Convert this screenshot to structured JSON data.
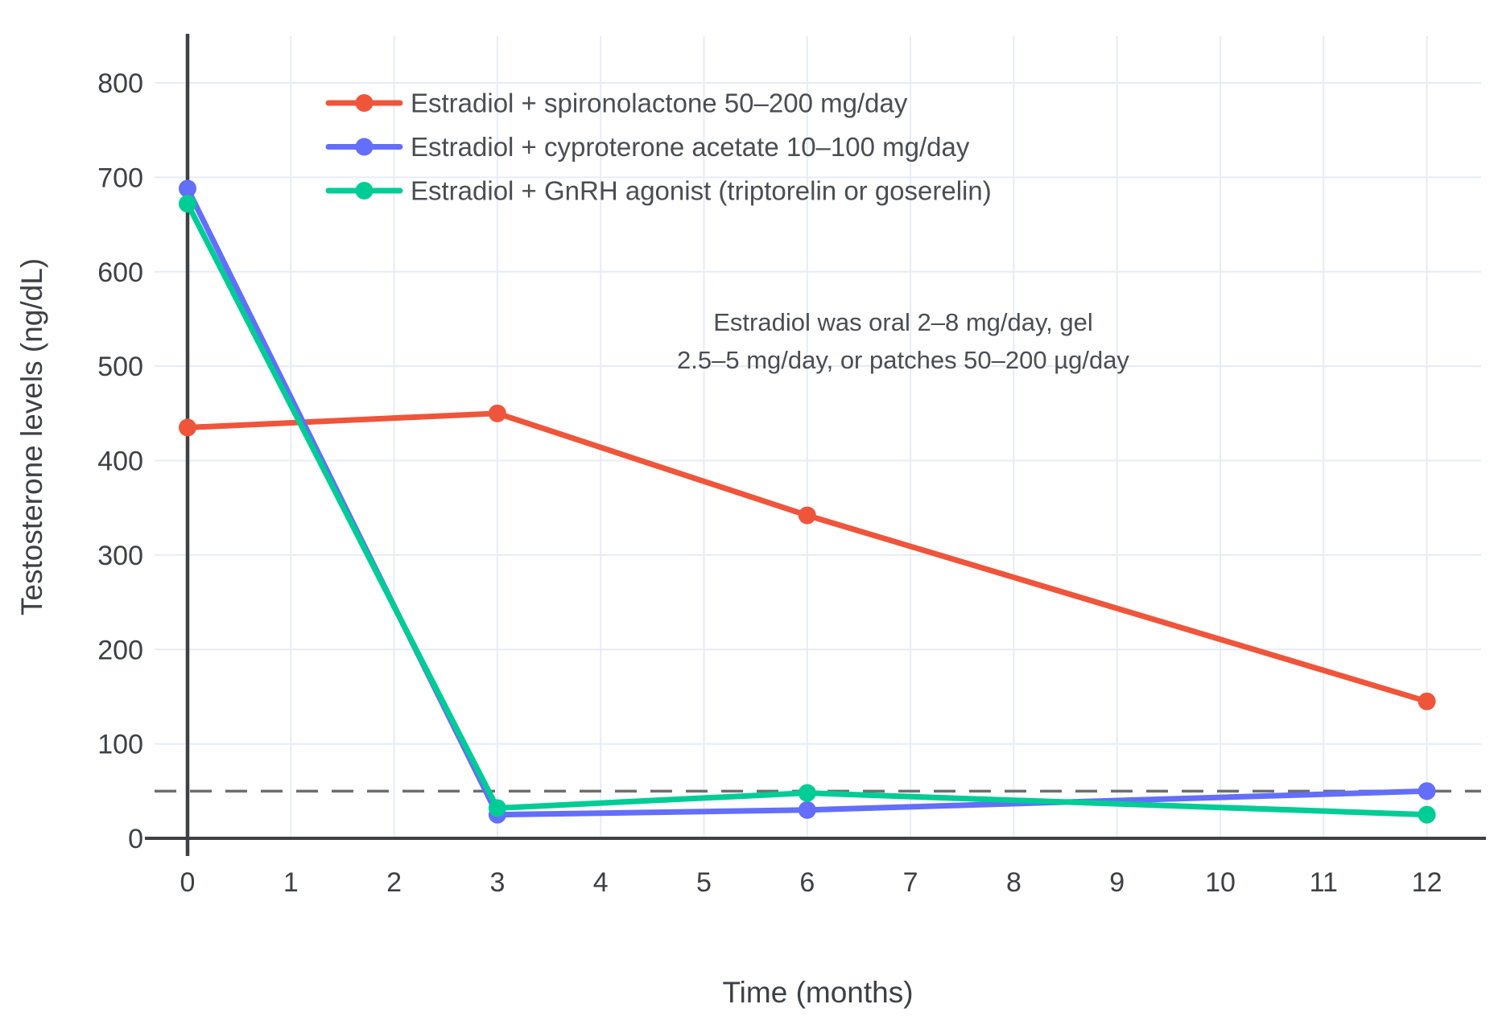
{
  "chart_data": {
    "type": "line",
    "title": "",
    "xlabel": "Time (months)",
    "ylabel": "Testosterone levels (ng/dL)",
    "x": [
      0,
      3,
      6,
      12
    ],
    "series": [
      {
        "name": "Estradiol + spironolactone 50–200 mg/day",
        "color": "#EF553B",
        "values": [
          435,
          450,
          342,
          145
        ]
      },
      {
        "name": "Estradiol + cyproterone acetate 10–100 mg/day",
        "color": "#636EFA",
        "values": [
          688,
          25,
          30,
          50
        ]
      },
      {
        "name": "Estradiol + GnRH agonist (triptorelin or goserelin)",
        "color": "#00CC96",
        "values": [
          672,
          32,
          48,
          25
        ]
      }
    ],
    "xticks": [
      0,
      1,
      2,
      3,
      4,
      5,
      6,
      7,
      8,
      9,
      10,
      11,
      12
    ],
    "yticks": [
      0,
      100,
      200,
      300,
      400,
      500,
      600,
      700,
      800
    ],
    "xlim": [
      -0.32,
      12.55
    ],
    "ylim": [
      0,
      850
    ],
    "grid": true,
    "legend_position": "top-left-inside",
    "reference_line": {
      "y": 50,
      "style": "dashed",
      "color": "#6e6e6e"
    },
    "annotation": {
      "lines": [
        "Estradiol was oral 2–8 mg/day, gel",
        "2.5–5 mg/day, or patches 50–200 µg/day"
      ]
    }
  },
  "colors": {
    "background": "#ffffff",
    "grid": "#e7ecf5",
    "axis": "#3d4045",
    "tick_label": "#3d4045",
    "text": "#4a4d53",
    "reference": "#6e6e6e"
  }
}
